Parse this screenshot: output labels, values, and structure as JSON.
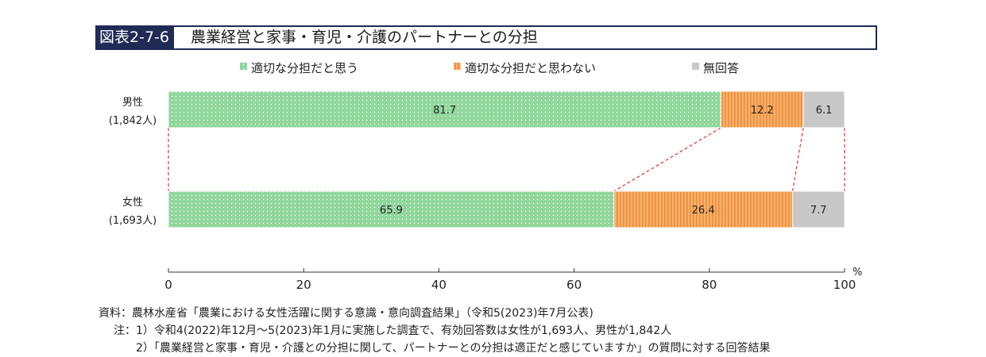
{
  "title": {
    "label": "図表2-7-6",
    "text": "農業経営と家事・育児・介護のパートナーとの分担"
  },
  "chart_data": {
    "type": "bar",
    "orientation": "horizontal",
    "stacked": true,
    "categories": [
      {
        "name": "男性",
        "sub": "(1,842人)"
      },
      {
        "name": "女性",
        "sub": "(1,693人)"
      }
    ],
    "series": [
      {
        "name": "適切な分担だと思う",
        "values": [
          81.7,
          65.9
        ],
        "color": "#8fd69a",
        "pattern": "dots"
      },
      {
        "name": "適切な分担だと思わない",
        "values": [
          12.2,
          26.4
        ],
        "color": "#f6b26b",
        "pattern": "vertical-stripes"
      },
      {
        "name": "無回答",
        "values": [
          6.1,
          7.7
        ],
        "color": "#c8c8c8",
        "pattern": "solid"
      }
    ],
    "xlim": [
      0,
      100
    ],
    "xticks": [
      0,
      20,
      40,
      60,
      80,
      100
    ],
    "unit": "%",
    "legend": "top",
    "connector_lines": true
  },
  "notes": {
    "source": "資料：農林水産省「農業における女性活躍に関する意識・意向調査結果」（令和5(2023)年7月公表)",
    "note1": "注：1）令和4(2022)年12月～5(2023)年1月に実施した調査で、有効回答数は女性が1,693人、男性が1,842人",
    "note2": "2）「農業経営と家事・育児・介護との分担に関して、パートナーとの分担は適正だと感じていますか」の質問に対する回答結果"
  }
}
